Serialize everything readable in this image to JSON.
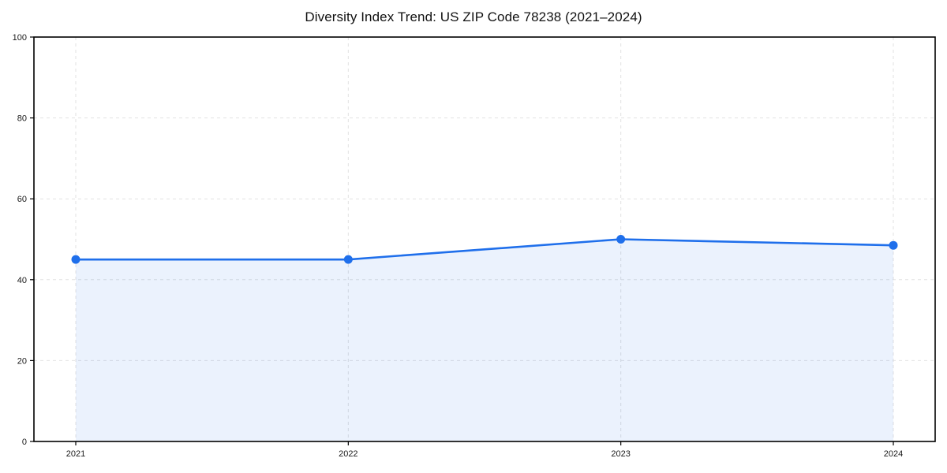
{
  "chart_data": {
    "type": "line",
    "title": "Diversity Index Trend: US ZIP Code 78238 (2021–2024)",
    "xlabel": "",
    "ylabel": "",
    "categories": [
      "2021",
      "2022",
      "2023",
      "2024"
    ],
    "series": [
      {
        "name": "Diversity Index",
        "values": [
          45,
          45,
          50,
          48.5
        ]
      }
    ],
    "ylim": [
      0,
      100
    ],
    "yticks": [
      0,
      20,
      40,
      60,
      80,
      100
    ],
    "grid": true,
    "grid_style": "dashed",
    "legend_position": "none",
    "area_fill_to_zero": true,
    "marker": "circle",
    "colors": {
      "line": "#1f6feb",
      "fill": "#1f6feb",
      "fill_opacity": "0.09",
      "grid": "#e2e2e2",
      "axis": "#000000",
      "tick_label": "#1a1a1a"
    }
  }
}
